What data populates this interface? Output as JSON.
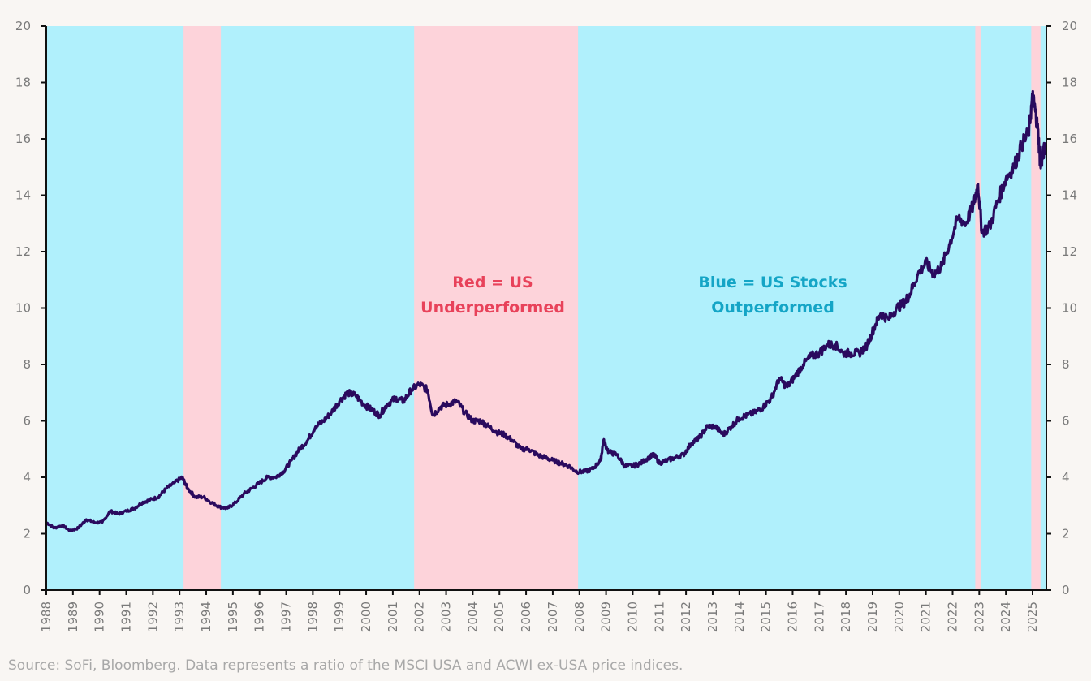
{
  "chart_data": {
    "type": "line",
    "title": "",
    "xlabel": "",
    "ylabel": "",
    "ylim": [
      0,
      20
    ],
    "xlim": [
      1988,
      2025.5
    ],
    "yticks": [
      "0",
      "2",
      "4",
      "6",
      "8",
      "10",
      "12",
      "14",
      "16",
      "18",
      "20"
    ],
    "xticks": [
      "1988",
      "1989",
      "1990",
      "1991",
      "1992",
      "1993",
      "1994",
      "1995",
      "1996",
      "1997",
      "1998",
      "1999",
      "2000",
      "2001",
      "2002",
      "2003",
      "2004",
      "2005",
      "2006",
      "2007",
      "2008",
      "2009",
      "2010",
      "2011",
      "2012",
      "2013",
      "2014",
      "2015",
      "2016",
      "2017",
      "2018",
      "2019",
      "2020",
      "2021",
      "2022",
      "2023",
      "2024",
      "2025"
    ],
    "grid": false,
    "background_color": "#b0f0fc",
    "underperform_color": "#fdd3da",
    "line_color": "#2a0a5e",
    "underperform_periods": [
      [
        1993.15,
        1994.55
      ],
      [
        2001.8,
        2007.95
      ],
      [
        2022.85,
        2023.05
      ],
      [
        2024.95,
        2025.3
      ]
    ],
    "series": [
      {
        "name": "MSCI USA / ACWI ex-USA ratio",
        "x": [
          1988.0,
          1988.3,
          1988.6,
          1988.9,
          1989.2,
          1989.5,
          1989.8,
          1990.1,
          1990.4,
          1990.7,
          1991.0,
          1991.3,
          1991.6,
          1991.9,
          1992.2,
          1992.5,
          1992.8,
          1993.1,
          1993.3,
          1993.6,
          1993.9,
          1994.2,
          1994.5,
          1994.8,
          1995.1,
          1995.4,
          1995.7,
          1996.0,
          1996.3,
          1996.6,
          1996.9,
          1997.2,
          1997.5,
          1997.8,
          1998.1,
          1998.4,
          1998.7,
          1999.0,
          1999.3,
          1999.6,
          1999.9,
          2000.2,
          2000.5,
          2000.8,
          2001.1,
          2001.4,
          2001.7,
          2002.0,
          2002.3,
          2002.5,
          2002.8,
          2003.1,
          2003.4,
          2003.7,
          2004.0,
          2004.3,
          2004.6,
          2004.9,
          2005.2,
          2005.5,
          2005.8,
          2006.1,
          2006.4,
          2006.7,
          2007.0,
          2007.3,
          2007.6,
          2007.9,
          2008.2,
          2008.5,
          2008.8,
          2008.9,
          2009.1,
          2009.4,
          2009.7,
          2010.0,
          2010.3,
          2010.6,
          2010.8,
          2011.0,
          2011.3,
          2011.6,
          2011.9,
          2012.2,
          2012.5,
          2012.8,
          2013.1,
          2013.4,
          2013.7,
          2014.0,
          2014.3,
          2014.6,
          2014.9,
          2015.2,
          2015.5,
          2015.8,
          2016.1,
          2016.4,
          2016.7,
          2017.0,
          2017.3,
          2017.6,
          2017.9,
          2018.2,
          2018.5,
          2018.8,
          2019.1,
          2019.3,
          2019.6,
          2019.9,
          2020.2,
          2020.4,
          2020.7,
          2021.0,
          2021.3,
          2021.6,
          2021.9,
          2022.2,
          2022.5,
          2022.8,
          2022.95,
          2023.1,
          2023.4,
          2023.7,
          2024.0,
          2024.3,
          2024.6,
          2024.85,
          2025.0,
          2025.1,
          2025.2,
          2025.3,
          2025.4,
          2025.5
        ],
        "values": [
          2.4,
          2.2,
          2.3,
          2.1,
          2.2,
          2.5,
          2.4,
          2.4,
          2.8,
          2.7,
          2.8,
          2.9,
          3.1,
          3.2,
          3.3,
          3.6,
          3.8,
          4.0,
          3.6,
          3.3,
          3.3,
          3.1,
          2.95,
          2.9,
          3.1,
          3.4,
          3.6,
          3.8,
          4.0,
          4.0,
          4.2,
          4.6,
          5.0,
          5.3,
          5.8,
          6.0,
          6.3,
          6.7,
          7.0,
          6.9,
          6.6,
          6.4,
          6.2,
          6.6,
          6.8,
          6.7,
          7.1,
          7.3,
          7.1,
          6.2,
          6.5,
          6.6,
          6.7,
          6.3,
          6.0,
          6.0,
          5.8,
          5.6,
          5.5,
          5.3,
          5.0,
          5.0,
          4.8,
          4.7,
          4.6,
          4.5,
          4.4,
          4.2,
          4.2,
          4.3,
          4.6,
          5.3,
          4.9,
          4.8,
          4.4,
          4.4,
          4.5,
          4.7,
          4.8,
          4.5,
          4.6,
          4.7,
          4.8,
          5.2,
          5.4,
          5.8,
          5.8,
          5.5,
          5.8,
          6.1,
          6.2,
          6.3,
          6.5,
          6.8,
          7.5,
          7.2,
          7.6,
          8.0,
          8.3,
          8.4,
          8.7,
          8.7,
          8.4,
          8.4,
          8.4,
          8.7,
          9.4,
          9.8,
          9.6,
          10.0,
          10.2,
          10.5,
          11.2,
          11.6,
          11.2,
          11.5,
          12.3,
          13.2,
          13.0,
          13.7,
          14.4,
          12.7,
          12.9,
          13.8,
          14.6,
          15.0,
          15.8,
          16.2,
          17.5,
          17.0,
          16.3,
          15.0,
          15.5,
          15.8
        ]
      }
    ],
    "annotations": [
      {
        "text_line1": "Red = US",
        "text_line2": "Underperformed",
        "color": "#e8425a"
      },
      {
        "text_line1": "Blue = US Stocks",
        "text_line2": "Outperformed",
        "color": "#14a5c6"
      }
    ]
  },
  "source_note": "Source: SoFi, Bloomberg. Data represents a ratio of the MSCI USA and ACWI ex-USA price indices."
}
